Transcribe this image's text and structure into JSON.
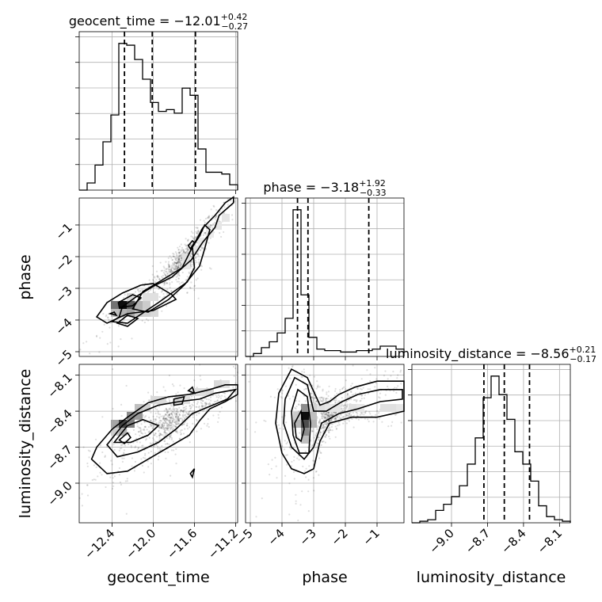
{
  "chart_data": {
    "type": "corner",
    "parameters": [
      "geocent_time",
      "phase",
      "luminosity_distance"
    ],
    "axis_labels": {
      "geocent_time": "geocent_time",
      "phase": "phase",
      "luminosity_distance": "luminosity_distance"
    },
    "ranges": {
      "geocent_time": [
        -12.72,
        -11.18
      ],
      "phase": [
        -5.15,
        -0.15
      ],
      "luminosity_distance": [
        -9.33,
        -8.01
      ]
    },
    "ticks": {
      "geocent_time": {
        "values": [
          -12.4,
          -12.0,
          -11.6,
          -11.2
        ],
        "labels": [
          "−12.4",
          "−12.0",
          "−11.6",
          "−11.2"
        ]
      },
      "phase": {
        "values": [
          -5,
          -4,
          -3,
          -2,
          -1
        ],
        "labels": [
          "−5",
          "−4",
          "−3",
          "−2",
          "−1"
        ]
      },
      "luminosity_distance": {
        "values": [
          -9.0,
          -8.7,
          -8.4,
          -8.1
        ],
        "labels": [
          "−9.0",
          "−8.7",
          "−8.4",
          "−8.1"
        ]
      }
    },
    "titles": {
      "geocent_time": {
        "prefix": "geocent_time = −12.01",
        "plus": "+0.42",
        "minus": "−0.27"
      },
      "phase": {
        "prefix": "phase = −3.18",
        "plus": "+1.92",
        "minus": "−0.33"
      },
      "luminosity_distance": {
        "prefix": "luminosity_distance = −8.56",
        "plus": "+0.21",
        "minus": "−0.17"
      }
    },
    "medians": {
      "geocent_time": -12.01,
      "phase": -3.18,
      "luminosity_distance": -8.56
    },
    "quantiles": {
      "geocent_time": [
        -12.28,
        -12.01,
        -11.59
      ],
      "phase": [
        -3.51,
        -3.18,
        -1.26
      ],
      "luminosity_distance": [
        -8.73,
        -8.56,
        -8.35
      ]
    },
    "histograms": {
      "geocent_time": {
        "bins": 20,
        "counts": [
          0.0,
          0.04,
          0.14,
          0.27,
          0.42,
          0.82,
          0.81,
          0.73,
          0.62,
          0.49,
          0.44,
          0.45,
          0.43,
          0.57,
          0.53,
          0.23,
          0.1,
          0.1,
          0.09,
          0.03
        ]
      },
      "phase": {
        "bins": 20,
        "counts": [
          0.0,
          0.02,
          0.06,
          0.1,
          0.16,
          0.26,
          1.0,
          0.42,
          0.13,
          0.05,
          0.04,
          0.04,
          0.03,
          0.03,
          0.04,
          0.04,
          0.05,
          0.07,
          0.07,
          0.05
        ]
      },
      "luminosity_distance": {
        "bins": 20,
        "counts": [
          0.0,
          0.01,
          0.02,
          0.08,
          0.12,
          0.17,
          0.24,
          0.38,
          0.55,
          0.81,
          0.95,
          0.83,
          0.67,
          0.46,
          0.38,
          0.27,
          0.11,
          0.04,
          0.02,
          0.01
        ]
      }
    },
    "contours_2d": {
      "geocent_time|phase": [
        [
          [
            -12.33,
            -3.9
          ],
          [
            -12.3,
            -3.58
          ],
          [
            -12.15,
            -3.23
          ],
          [
            -11.98,
            -2.9
          ],
          [
            -11.82,
            -2.65
          ],
          [
            -11.63,
            -2.1
          ],
          [
            -11.52,
            -1.55
          ],
          [
            -11.4,
            -1.08
          ],
          [
            -11.36,
            -0.7
          ],
          [
            -11.22,
            -0.3
          ],
          [
            -11.22,
            -0.12
          ],
          [
            -11.3,
            -0.3
          ],
          [
            -11.4,
            -0.7
          ],
          [
            -11.52,
            -1.1
          ],
          [
            -11.62,
            -1.7
          ],
          [
            -11.6,
            -2.35
          ],
          [
            -11.67,
            -2.8
          ],
          [
            -11.95,
            -3.45
          ],
          [
            -12.25,
            -4.1
          ],
          [
            -12.4,
            -4.05
          ]
        ],
        [
          [
            -12.2,
            -3.65
          ],
          [
            -12.1,
            -3.1
          ],
          [
            -11.92,
            -2.75
          ],
          [
            -11.72,
            -2.35
          ],
          [
            -11.62,
            -1.7
          ],
          [
            -11.55,
            -1.35
          ],
          [
            -11.5,
            -1.0
          ],
          [
            -11.45,
            -1.15
          ],
          [
            -11.5,
            -1.75
          ],
          [
            -11.55,
            -2.3
          ],
          [
            -11.7,
            -2.9
          ],
          [
            -11.85,
            -3.35
          ],
          [
            -12.05,
            -3.75
          ]
        ],
        [
          [
            -12.55,
            -3.9
          ],
          [
            -12.45,
            -3.45
          ],
          [
            -12.3,
            -3.15
          ],
          [
            -12.12,
            -2.9
          ],
          [
            -12.0,
            -2.85
          ],
          [
            -11.82,
            -3.2
          ],
          [
            -11.78,
            -3.35
          ],
          [
            -12.0,
            -3.7
          ],
          [
            -12.25,
            -3.8
          ],
          [
            -12.45,
            -4.1
          ]
        ],
        [
          [
            -12.34,
            -3.45
          ],
          [
            -12.2,
            -3.2
          ],
          [
            -12.12,
            -3.3
          ],
          [
            -12.2,
            -3.55
          ],
          [
            -12.33,
            -3.6
          ]
        ],
        [
          [
            -11.66,
            -1.65
          ],
          [
            -11.62,
            -1.5
          ],
          [
            -11.6,
            -1.55
          ],
          [
            -11.64,
            -1.75
          ]
        ],
        [
          [
            -12.35,
            -4.1
          ],
          [
            -12.25,
            -3.85
          ],
          [
            -12.15,
            -3.95
          ],
          [
            -12.25,
            -4.2
          ]
        ],
        [
          [
            -12.42,
            -3.8
          ],
          [
            -12.38,
            -3.75
          ],
          [
            -12.36,
            -3.85
          ]
        ]
      ],
      "geocent_time|luminosity_distance": [
        [
          [
            -12.55,
            -8.7
          ],
          [
            -12.4,
            -8.55
          ],
          [
            -12.25,
            -8.45
          ],
          [
            -12.05,
            -8.33
          ],
          [
            -11.85,
            -8.28
          ],
          [
            -11.65,
            -8.26
          ],
          [
            -11.45,
            -8.22
          ],
          [
            -11.3,
            -8.18
          ],
          [
            -11.18,
            -8.18
          ],
          [
            -11.18,
            -8.26
          ],
          [
            -11.3,
            -8.32
          ],
          [
            -11.45,
            -8.38
          ],
          [
            -11.55,
            -8.48
          ],
          [
            -11.65,
            -8.6
          ],
          [
            -11.85,
            -8.7
          ],
          [
            -12.05,
            -8.8
          ],
          [
            -12.25,
            -8.9
          ],
          [
            -12.45,
            -8.92
          ],
          [
            -12.6,
            -8.8
          ]
        ],
        [
          [
            -12.45,
            -8.68
          ],
          [
            -12.3,
            -8.52
          ],
          [
            -12.15,
            -8.42
          ],
          [
            -11.95,
            -8.35
          ],
          [
            -11.75,
            -8.32
          ],
          [
            -11.55,
            -8.3
          ],
          [
            -11.4,
            -8.25
          ],
          [
            -11.2,
            -8.22
          ],
          [
            -11.28,
            -8.3
          ],
          [
            -11.45,
            -8.36
          ],
          [
            -11.62,
            -8.42
          ],
          [
            -11.78,
            -8.55
          ],
          [
            -11.95,
            -8.66
          ],
          [
            -12.15,
            -8.74
          ],
          [
            -12.35,
            -8.78
          ]
        ],
        [
          [
            -12.38,
            -8.66
          ],
          [
            -12.25,
            -8.52
          ],
          [
            -12.1,
            -8.47
          ],
          [
            -11.95,
            -8.52
          ],
          [
            -12.05,
            -8.6
          ],
          [
            -12.22,
            -8.66
          ]
        ],
        [
          [
            -12.33,
            -8.64
          ],
          [
            -12.25,
            -8.58
          ],
          [
            -12.22,
            -8.62
          ],
          [
            -12.28,
            -8.67
          ]
        ],
        [
          [
            -11.8,
            -8.3
          ],
          [
            -11.7,
            -8.28
          ],
          [
            -11.72,
            -8.34
          ],
          [
            -11.8,
            -8.35
          ]
        ],
        [
          [
            -11.66,
            -8.23
          ],
          [
            -11.62,
            -8.2
          ],
          [
            -11.6,
            -8.25
          ]
        ],
        [
          [
            -11.64,
            -8.92
          ],
          [
            -11.6,
            -8.88
          ],
          [
            -11.62,
            -8.95
          ]
        ]
      ],
      "phase|luminosity_distance": [
        [
          [
            -4.1,
            -8.25
          ],
          [
            -3.7,
            -8.05
          ],
          [
            -3.2,
            -8.12
          ],
          [
            -2.8,
            -8.35
          ],
          [
            -2.5,
            -8.32
          ],
          [
            -2.2,
            -8.26
          ],
          [
            -1.7,
            -8.2
          ],
          [
            -1.0,
            -8.15
          ],
          [
            -0.15,
            -8.15
          ],
          [
            -0.15,
            -8.4
          ],
          [
            -1.0,
            -8.45
          ],
          [
            -1.8,
            -8.45
          ],
          [
            -2.5,
            -8.5
          ],
          [
            -2.8,
            -8.65
          ],
          [
            -3.0,
            -8.88
          ],
          [
            -3.3,
            -8.92
          ],
          [
            -3.7,
            -8.88
          ],
          [
            -4.0,
            -8.75
          ],
          [
            -4.2,
            -8.5
          ]
        ],
        [
          [
            -3.9,
            -8.3
          ],
          [
            -3.6,
            -8.12
          ],
          [
            -3.2,
            -8.18
          ],
          [
            -3.0,
            -8.4
          ],
          [
            -2.6,
            -8.4
          ],
          [
            -2.1,
            -8.32
          ],
          [
            -1.6,
            -8.26
          ],
          [
            -0.9,
            -8.22
          ],
          [
            -0.2,
            -8.22
          ],
          [
            -0.2,
            -8.3
          ],
          [
            -0.9,
            -8.32
          ],
          [
            -1.6,
            -8.38
          ],
          [
            -2.2,
            -8.42
          ],
          [
            -2.75,
            -8.5
          ],
          [
            -3.0,
            -8.7
          ],
          [
            -3.3,
            -8.8
          ],
          [
            -3.7,
            -8.7
          ],
          [
            -3.95,
            -8.5
          ]
        ],
        [
          [
            -3.7,
            -8.4
          ],
          [
            -3.5,
            -8.22
          ],
          [
            -3.2,
            -8.28
          ],
          [
            -3.1,
            -8.5
          ],
          [
            -3.15,
            -8.75
          ],
          [
            -3.45,
            -8.75
          ],
          [
            -3.65,
            -8.6
          ]
        ],
        [
          [
            -3.6,
            -8.5
          ],
          [
            -3.4,
            -8.4
          ],
          [
            -3.3,
            -8.55
          ],
          [
            -3.4,
            -8.65
          ],
          [
            -3.55,
            -8.62
          ]
        ]
      ]
    },
    "density_2d": {
      "geocent_time|phase": {
        "xbins": 20,
        "ybins": 20,
        "cells": [
          [
            4,
            6,
            0.55
          ],
          [
            5,
            6,
            0.95
          ],
          [
            6,
            6,
            0.65
          ],
          [
            4,
            5,
            0.25
          ],
          [
            5,
            5,
            0.3
          ],
          [
            6,
            5,
            0.35
          ],
          [
            7,
            5,
            0.2
          ],
          [
            8,
            5,
            0.18
          ],
          [
            9,
            5,
            0.15
          ],
          [
            7,
            6,
            0.3
          ],
          [
            8,
            6,
            0.2
          ],
          [
            8,
            7,
            0.12
          ],
          [
            9,
            7,
            0.12
          ],
          [
            6,
            7,
            0.15
          ],
          [
            13,
            11,
            0.1
          ],
          [
            13,
            12,
            0.12
          ],
          [
            14,
            13,
            0.1
          ],
          [
            15,
            14,
            0.08
          ],
          [
            16,
            15,
            0.08
          ],
          [
            17,
            16,
            0.1
          ],
          [
            18,
            17,
            0.1
          ]
        ]
      },
      "geocent_time|luminosity_distance": {
        "xbins": 20,
        "ybins": 20,
        "cells": [
          [
            5,
            12,
            0.75
          ],
          [
            6,
            12,
            0.5
          ],
          [
            4,
            12,
            0.35
          ],
          [
            6,
            13,
            0.45
          ],
          [
            7,
            13,
            0.4
          ],
          [
            5,
            11,
            0.3
          ],
          [
            4,
            11,
            0.2
          ],
          [
            7,
            14,
            0.25
          ],
          [
            8,
            14,
            0.18
          ],
          [
            9,
            15,
            0.15
          ],
          [
            10,
            15,
            0.14
          ],
          [
            12,
            15,
            0.15
          ],
          [
            13,
            15,
            0.12
          ],
          [
            14,
            16,
            0.12
          ],
          [
            15,
            16,
            0.12
          ],
          [
            16,
            16,
            0.14
          ],
          [
            17,
            17,
            0.15
          ],
          [
            18,
            17,
            0.12
          ]
        ]
      },
      "phase|luminosity_distance": {
        "xbins": 20,
        "ybins": 20,
        "cells": [
          [
            7,
            13,
            0.95
          ],
          [
            7,
            12,
            0.7
          ],
          [
            7,
            11,
            0.45
          ],
          [
            7,
            14,
            0.45
          ],
          [
            7,
            10,
            0.25
          ],
          [
            6,
            12,
            0.3
          ],
          [
            8,
            12,
            0.3
          ],
          [
            6,
            13,
            0.2
          ],
          [
            8,
            13,
            0.25
          ],
          [
            8,
            14,
            0.18
          ],
          [
            9,
            14,
            0.12
          ],
          [
            10,
            14,
            0.1
          ],
          [
            11,
            14,
            0.1
          ],
          [
            13,
            14,
            0.12
          ],
          [
            14,
            14,
            0.1
          ],
          [
            17,
            14,
            0.12
          ],
          [
            18,
            14,
            0.12
          ],
          [
            19,
            14,
            0.1
          ]
        ]
      }
    }
  }
}
